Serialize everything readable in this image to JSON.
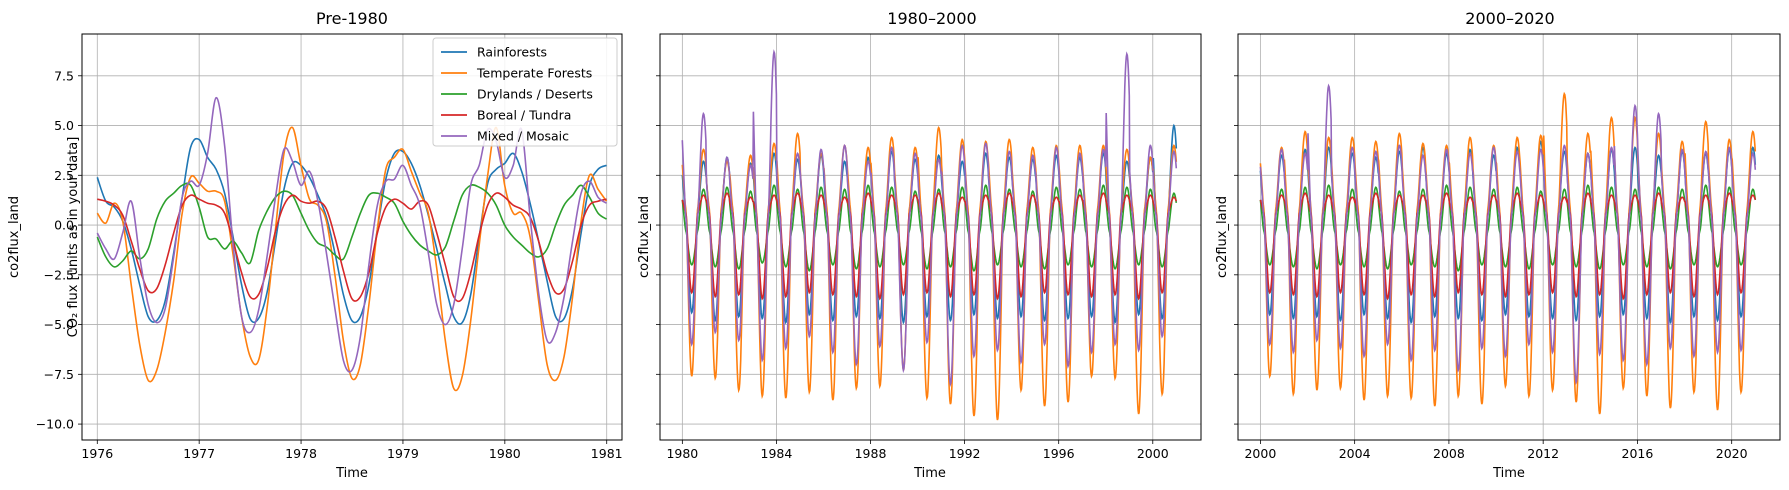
{
  "chart_data": [
    {
      "type": "line",
      "title": "Pre-1980",
      "xlabel": "Time",
      "ylabel": "co2flux_land",
      "ylabel2": "CO₂ flux [units as in your data]",
      "xlim": [
        1975.85,
        1981.15
      ],
      "ylim": [
        -10.8,
        9.6
      ],
      "xticks": [
        1976,
        1977,
        1978,
        1979,
        1980,
        1981
      ],
      "yticks": [
        -10.0,
        -7.5,
        -5.0,
        -2.5,
        0.0,
        2.5,
        5.0,
        7.5
      ],
      "grid": true,
      "legend": {
        "position": "top-right",
        "entries": [
          "Rainforests",
          "Temperate Forests",
          "Drylands / Deserts",
          "Boreal / Tundra",
          "Mixed / Mosaic"
        ]
      },
      "x_start": 1976.0,
      "x_step": 0.0833,
      "series": [
        {
          "name": "Rainforests",
          "color": "#1f77b4",
          "values": [
            2.4,
            1.2,
            0.9,
            0.2,
            -1.2,
            -3.0,
            -4.6,
            -4.8,
            -3.8,
            -1.4,
            1.4,
            3.9,
            4.3,
            3.4,
            2.8,
            1.6,
            -0.6,
            -3.0,
            -4.7,
            -4.7,
            -3.4,
            -0.8,
            1.8,
            3.1,
            3.0,
            2.4,
            1.5,
            0.4,
            -1.4,
            -3.5,
            -4.8,
            -4.6,
            -3.0,
            -0.2,
            2.3,
            3.6,
            3.7,
            3.1,
            2.0,
            0.5,
            -1.2,
            -3.0,
            -4.6,
            -4.9,
            -3.5,
            -0.6,
            2.1,
            2.8,
            3.1,
            3.6,
            2.7,
            1.1,
            -0.8,
            -2.8,
            -4.6,
            -4.7,
            -3.2,
            -0.4,
            2.0,
            2.8,
            3.0
          ]
        },
        {
          "name": "Temperate Forests",
          "color": "#ff7f0e",
          "values": [
            0.6,
            0.1,
            1.1,
            0.2,
            -3.0,
            -6.0,
            -7.8,
            -7.3,
            -5.4,
            -2.8,
            0.6,
            2.4,
            2.1,
            1.7,
            1.7,
            1.2,
            -1.5,
            -4.6,
            -6.6,
            -6.8,
            -4.2,
            -0.2,
            3.6,
            4.9,
            3.0,
            1.3,
            1.0,
            0.2,
            -2.5,
            -5.8,
            -7.7,
            -7.0,
            -4.0,
            -0.2,
            2.8,
            3.4,
            3.8,
            2.7,
            1.6,
            0.6,
            -2.2,
            -5.8,
            -8.2,
            -7.6,
            -4.8,
            -1.0,
            2.5,
            4.9,
            2.0,
            0.6,
            0.6,
            -0.6,
            -3.8,
            -7.0,
            -7.8,
            -6.6,
            -3.6,
            0.2,
            2.5,
            1.8,
            1.2
          ]
        },
        {
          "name": "Drylands / Deserts",
          "color": "#2ca02c",
          "values": [
            -0.6,
            -1.6,
            -2.1,
            -1.8,
            -1.3,
            -1.7,
            -1.2,
            0.3,
            1.2,
            1.6,
            2.0,
            2.0,
            0.9,
            -0.6,
            -0.7,
            -1.2,
            -0.8,
            -1.4,
            -1.9,
            -0.3,
            0.7,
            1.4,
            1.7,
            1.5,
            0.6,
            -0.3,
            -0.9,
            -1.1,
            -1.5,
            -1.7,
            -0.6,
            0.6,
            1.5,
            1.6,
            1.4,
            1.1,
            0.2,
            -0.5,
            -1.0,
            -1.3,
            -1.5,
            -1.1,
            0.2,
            1.5,
            2.0,
            1.9,
            1.6,
            1.0,
            0.0,
            -0.6,
            -1.0,
            -1.4,
            -1.6,
            -1.2,
            0.0,
            1.0,
            1.5,
            2.0,
            1.4,
            0.6,
            0.3
          ]
        },
        {
          "name": "Boreal / Tundra",
          "color": "#d62728",
          "values": [
            1.3,
            1.2,
            1.0,
            0.5,
            -0.8,
            -2.2,
            -3.3,
            -3.2,
            -2.0,
            -0.4,
            1.0,
            1.5,
            1.3,
            1.1,
            1.0,
            0.6,
            -0.8,
            -2.4,
            -3.6,
            -3.5,
            -2.2,
            -0.3,
            1.0,
            1.5,
            1.2,
            1.1,
            1.2,
            0.8,
            -0.6,
            -2.3,
            -3.7,
            -3.6,
            -2.4,
            -0.4,
            0.9,
            1.3,
            1.1,
            0.8,
            1.2,
            1.0,
            -0.4,
            -2.0,
            -3.6,
            -3.7,
            -2.4,
            -0.5,
            1.0,
            1.6,
            1.4,
            1.0,
            0.8,
            0.4,
            -0.8,
            -2.4,
            -3.4,
            -3.2,
            -1.8,
            0.0,
            1.0,
            1.2,
            1.3
          ]
        },
        {
          "name": "Mixed / Mosaic",
          "color": "#9467bd",
          "values": [
            -0.4,
            -1.2,
            -1.7,
            -0.4,
            1.2,
            -1.6,
            -4.0,
            -4.9,
            -4.2,
            -1.6,
            1.4,
            2.2,
            2.0,
            3.6,
            6.4,
            4.0,
            -1.0,
            -4.6,
            -5.4,
            -4.3,
            -1.6,
            1.4,
            3.8,
            3.2,
            2.0,
            2.7,
            1.2,
            -1.4,
            -4.2,
            -6.8,
            -7.3,
            -5.6,
            -2.0,
            1.0,
            2.2,
            2.3,
            3.0,
            2.0,
            1.0,
            -1.4,
            -4.0,
            -5.0,
            -4.0,
            -1.2,
            2.0,
            3.0,
            4.8,
            4.2,
            2.4,
            3.0,
            4.8,
            0.4,
            -3.4,
            -5.8,
            -5.4,
            -3.6,
            -0.8,
            1.6,
            2.2,
            1.4,
            1.1
          ]
        }
      ]
    },
    {
      "type": "line",
      "title": "1980–2000",
      "xlabel": "Time",
      "ylabel": "co2flux_land",
      "xlim": [
        1979.05,
        2002.05
      ],
      "ylim": [
        -10.8,
        9.6
      ],
      "xticks": [
        1980,
        1984,
        1988,
        1992,
        1996,
        2000
      ],
      "grid": true,
      "x_start": 1980.0,
      "x_end": 2001.0,
      "seasonal_model": "annual cycle per series: value = offset + amp_pos*max(cos(2π(x-peak)),0) - amp_neg*max(-cos(2π(x-peak)),0); yearly peak values listed per series",
      "series": [
        {
          "name": "Rainforests",
          "color": "#1f77b4",
          "offset": 0.5,
          "trough_values": [
            -4.4,
            -4.8,
            -4.6,
            -4.7,
            -4.9,
            -4.5,
            -4.8,
            -4.6,
            -4.7,
            -4.9,
            -4.6,
            -4.8,
            -4.5,
            -4.7,
            -4.6,
            -4.8,
            -4.7,
            -4.6,
            -4.9,
            -4.5,
            -4.7
          ],
          "peak_values": [
            3.2,
            3.4,
            3.1,
            3.6,
            3.3,
            3.5,
            3.2,
            3.4,
            3.7,
            3.3,
            3.5,
            3.2,
            3.6,
            3.4,
            3.3,
            3.5,
            3.4,
            3.6,
            3.2,
            3.4,
            5.0
          ]
        },
        {
          "name": "Temperate Forests",
          "color": "#ff7f0e",
          "offset": 0.8,
          "trough_values": [
            -7.6,
            -7.7,
            -8.3,
            -8.6,
            -8.7,
            -8.4,
            -8.8,
            -8.2,
            -8.1,
            -7.3,
            -8.7,
            -9.0,
            -9.6,
            -9.8,
            -8.3,
            -9.1,
            -8.9,
            -7.6,
            -7.7,
            -9.5,
            -8.5
          ],
          "peak_values": [
            3.8,
            3.2,
            3.5,
            4.1,
            4.6,
            3.6,
            4.0,
            3.9,
            4.4,
            3.9,
            4.9,
            4.3,
            4.2,
            4.3,
            3.9,
            4.0,
            4.0,
            4.0,
            3.8,
            3.4,
            4.0
          ]
        },
        {
          "name": "Drylands / Deserts",
          "color": "#2ca02c",
          "offset": -0.3,
          "trough_values": [
            -2.0,
            -2.1,
            -2.2,
            -1.9,
            -2.1,
            -2.3,
            -2.0,
            -2.2,
            -2.1,
            -2.0,
            -2.2,
            -2.1,
            -2.3,
            -2.0,
            -2.1,
            -2.2,
            -2.0,
            -2.1,
            -2.2,
            -2.0,
            -2.1
          ],
          "peak_values": [
            1.8,
            1.9,
            1.7,
            2.0,
            1.8,
            1.9,
            1.8,
            2.0,
            1.9,
            1.7,
            1.8,
            1.9,
            2.0,
            1.8,
            1.7,
            1.9,
            1.8,
            2.0,
            1.9,
            1.8,
            1.6
          ]
        },
        {
          "name": "Boreal / Tundra",
          "color": "#d62728",
          "offset": 0.6,
          "trough_values": [
            -3.4,
            -3.6,
            -3.5,
            -3.7,
            -3.6,
            -3.4,
            -3.5,
            -3.6,
            -3.7,
            -3.5,
            -3.4,
            -3.6,
            -3.5,
            -3.7,
            -3.6,
            -3.4,
            -3.5,
            -3.6,
            -3.5,
            -3.7,
            -3.4
          ],
          "peak_values": [
            1.5,
            1.6,
            1.4,
            1.5,
            1.6,
            1.5,
            1.4,
            1.6,
            1.5,
            1.5,
            1.6,
            1.4,
            1.5,
            1.6,
            1.5,
            1.4,
            1.5,
            1.6,
            1.5,
            1.5,
            1.4
          ]
        },
        {
          "name": "Mixed / Mosaic",
          "color": "#9467bd",
          "offset": 0.4,
          "trough_values": [
            -6.0,
            -5.4,
            -5.8,
            -6.8,
            -6.2,
            -5.6,
            -6.4,
            -7.0,
            -6.1,
            -7.3,
            -5.9,
            -8.0,
            -6.6,
            -6.3,
            -6.9,
            -6.0,
            -7.1,
            -6.4,
            -6.0,
            -6.3,
            -5.6
          ],
          "peak_values": [
            5.6,
            3.4,
            3.0,
            8.7,
            3.6,
            3.8,
            4.0,
            3.2,
            3.9,
            3.6,
            3.3,
            4.0,
            4.1,
            3.7,
            3.5,
            3.9,
            3.6,
            3.8,
            8.6,
            4.0,
            3.7
          ]
        }
      ]
    },
    {
      "type": "line",
      "title": "2000–2020",
      "xlabel": "Time",
      "ylabel": "co2flux_land",
      "xlim": [
        1999.05,
        2022.05
      ],
      "ylim": [
        -10.8,
        9.6
      ],
      "xticks": [
        2000,
        2004,
        2008,
        2012,
        2016,
        2020
      ],
      "grid": true,
      "x_start": 2000.0,
      "x_end": 2021.0,
      "series": [
        {
          "name": "Rainforests",
          "color": "#1f77b4",
          "offset": 0.5,
          "trough_values": [
            -4.5,
            -4.7,
            -4.6,
            -4.8,
            -4.5,
            -4.7,
            -4.9,
            -4.6,
            -4.7,
            -4.8,
            -4.5,
            -4.6,
            -4.7,
            -4.8,
            -4.6,
            -4.5,
            -4.7,
            -4.9,
            -4.6,
            -4.8,
            -4.6
          ],
          "peak_values": [
            3.5,
            3.8,
            3.9,
            3.6,
            3.4,
            3.7,
            3.9,
            3.6,
            3.8,
            3.5,
            3.9,
            4.2,
            3.7,
            3.6,
            3.8,
            3.9,
            3.5,
            3.7,
            3.6,
            3.8,
            3.9
          ]
        },
        {
          "name": "Temperate Forests",
          "color": "#ff7f0e",
          "offset": 0.8,
          "trough_values": [
            -7.6,
            -8.5,
            -8.3,
            -8.2,
            -8.8,
            -8.6,
            -8.7,
            -9.1,
            -8.6,
            -9.0,
            -8.1,
            -8.6,
            -8.3,
            -8.9,
            -9.5,
            -8.2,
            -8.6,
            -9.2,
            -8.4,
            -9.3,
            -8.4
          ],
          "peak_values": [
            3.9,
            4.7,
            4.4,
            4.4,
            4.2,
            4.6,
            4.1,
            4.0,
            4.4,
            4.0,
            4.4,
            4.5,
            6.6,
            4.6,
            5.4,
            5.4,
            4.6,
            4.2,
            5.2,
            4.3,
            4.7
          ]
        },
        {
          "name": "Drylands / Deserts",
          "color": "#2ca02c",
          "offset": -0.3,
          "trough_values": [
            -2.0,
            -2.1,
            -2.2,
            -2.0,
            -2.1,
            -2.2,
            -2.0,
            -2.1,
            -2.3,
            -2.0,
            -2.1,
            -2.2,
            -2.0,
            -2.1,
            -2.2,
            -2.0,
            -2.1,
            -2.2,
            -2.0,
            -2.1,
            -2.0
          ],
          "peak_values": [
            1.8,
            1.9,
            2.0,
            1.8,
            1.9,
            1.7,
            1.8,
            2.0,
            1.9,
            1.8,
            1.9,
            1.7,
            1.8,
            2.0,
            1.9,
            1.8,
            1.9,
            1.8,
            2.0,
            1.9,
            1.8
          ]
        },
        {
          "name": "Boreal / Tundra",
          "color": "#d62728",
          "offset": 0.6,
          "trough_values": [
            -3.4,
            -3.5,
            -3.6,
            -3.4,
            -3.5,
            -3.7,
            -3.5,
            -3.6,
            -3.4,
            -3.5,
            -3.6,
            -3.5,
            -3.4,
            -3.6,
            -3.5,
            -3.7,
            -3.5,
            -3.4,
            -3.6,
            -3.5,
            -3.4
          ],
          "peak_values": [
            1.5,
            1.6,
            1.5,
            1.4,
            1.6,
            1.5,
            1.5,
            1.6,
            1.4,
            1.5,
            1.6,
            1.5,
            1.4,
            1.6,
            1.5,
            1.5,
            1.6,
            1.4,
            1.5,
            1.6,
            1.5
          ]
        },
        {
          "name": "Mixed / Mosaic",
          "color": "#9467bd",
          "offset": 0.4,
          "trough_values": [
            -6.0,
            -6.4,
            -5.8,
            -6.2,
            -6.6,
            -6.0,
            -6.8,
            -6.3,
            -7.3,
            -6.2,
            -6.6,
            -6.0,
            -6.4,
            -7.9,
            -6.5,
            -6.8,
            -7.0,
            -6.2,
            -6.6,
            -6.4,
            -6.3
          ],
          "peak_values": [
            3.8,
            3.6,
            7.0,
            3.9,
            3.7,
            4.0,
            3.5,
            3.8,
            3.6,
            3.9,
            3.7,
            3.8,
            4.0,
            3.6,
            3.9,
            6.0,
            5.6,
            3.8,
            3.7,
            3.9,
            3.6
          ]
        }
      ]
    }
  ]
}
